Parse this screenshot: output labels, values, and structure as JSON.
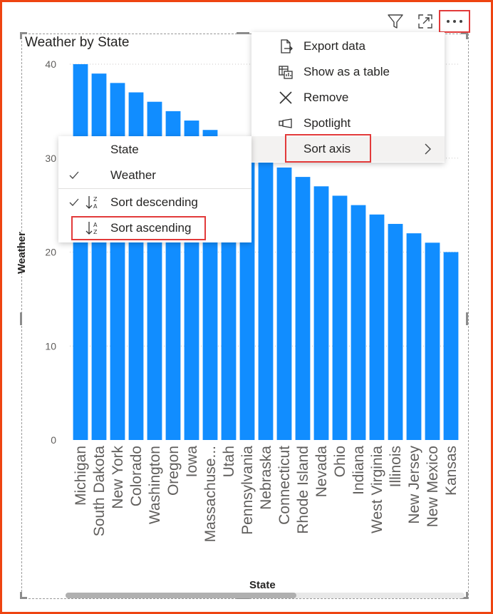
{
  "visual": {
    "title": "Weather by State"
  },
  "header": {
    "icons": [
      "filter-icon",
      "focus-mode-icon",
      "more-options-icon"
    ]
  },
  "chart_data": {
    "type": "bar",
    "xlabel": "State",
    "ylabel": "Weather",
    "ylim": [
      0,
      40
    ],
    "yticks": [
      "0",
      "10",
      "20",
      "30",
      "40"
    ],
    "categories": [
      "Michigan",
      "South Dakota",
      "New York",
      "Colorado",
      "Washington",
      "Oregon",
      "Iowa",
      "Massachuse...",
      "Utah",
      "Pennsylvania",
      "Nebraska",
      "Connecticut",
      "Rhode Island",
      "Nevada",
      "Ohio",
      "Indiana",
      "West Virginia",
      "Illinois",
      "New Jersey",
      "New Mexico",
      "Kansas"
    ],
    "values": [
      40,
      39,
      38,
      37,
      36,
      35,
      34,
      33,
      32,
      31,
      30,
      29,
      28,
      27,
      26,
      25,
      24,
      23,
      22,
      21,
      20
    ],
    "bar_color": "#118dff",
    "grid": true
  },
  "more_menu": {
    "items": [
      {
        "label": "Export data",
        "icon": "export-data-icon"
      },
      {
        "label": "Show as a table",
        "icon": "show-table-icon"
      },
      {
        "label": "Remove",
        "icon": "remove-icon"
      },
      {
        "label": "Spotlight",
        "icon": "spotlight-icon"
      },
      {
        "label": "Sort axis",
        "icon": "",
        "has_submenu": true
      }
    ]
  },
  "sort_menu": {
    "items": [
      {
        "label": "State",
        "checked": false
      },
      {
        "label": "Weather",
        "checked": true
      },
      {
        "label": "Sort descending",
        "checked": true
      },
      {
        "label": "Sort ascending",
        "checked": false
      }
    ]
  },
  "colors": {
    "highlight": "#e23a3a",
    "frame": "#ee4411",
    "bar": "#118dff"
  }
}
